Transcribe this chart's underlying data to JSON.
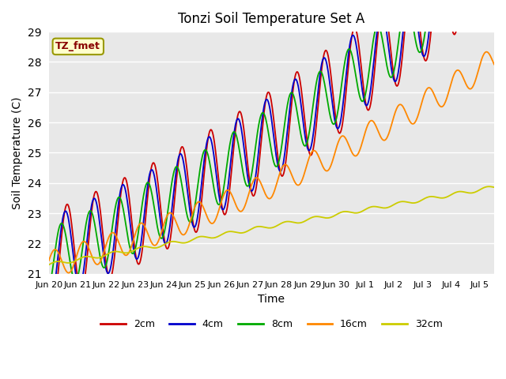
{
  "title": "Tonzi Soil Temperature Set A",
  "xlabel": "Time",
  "ylabel": "Soil Temperature (C)",
  "ylim": [
    21.0,
    29.0
  ],
  "yticks": [
    21.0,
    22.0,
    23.0,
    24.0,
    25.0,
    26.0,
    27.0,
    28.0,
    29.0
  ],
  "annotation": "TZ_fmet",
  "bg_color": "#e8e8e8",
  "lines": [
    {
      "label": "2cm",
      "color": "#cc0000",
      "lw": 1.3
    },
    {
      "label": "4cm",
      "color": "#0000cc",
      "lw": 1.3
    },
    {
      "label": "8cm",
      "color": "#00aa00",
      "lw": 1.3
    },
    {
      "label": "16cm",
      "color": "#ff8800",
      "lw": 1.3
    },
    {
      "label": "32cm",
      "color": "#cccc00",
      "lw": 1.3
    }
  ],
  "n_points": 744,
  "tick_labels": [
    "Jun 20",
    "Jun 21",
    "Jun 22",
    "Jun 23",
    "Jun 24",
    "Jun 25",
    "Jun 26",
    "Jun 27",
    "Jun 28",
    "Jun 29",
    "Jun 30",
    "Jul 1",
    "Jul 2",
    "Jul 3",
    "Jul 4",
    "Jul 5"
  ],
  "tick_positions": [
    0,
    1,
    2,
    3,
    4,
    5,
    6,
    7,
    8,
    9,
    10,
    11,
    12,
    13,
    14,
    15
  ]
}
